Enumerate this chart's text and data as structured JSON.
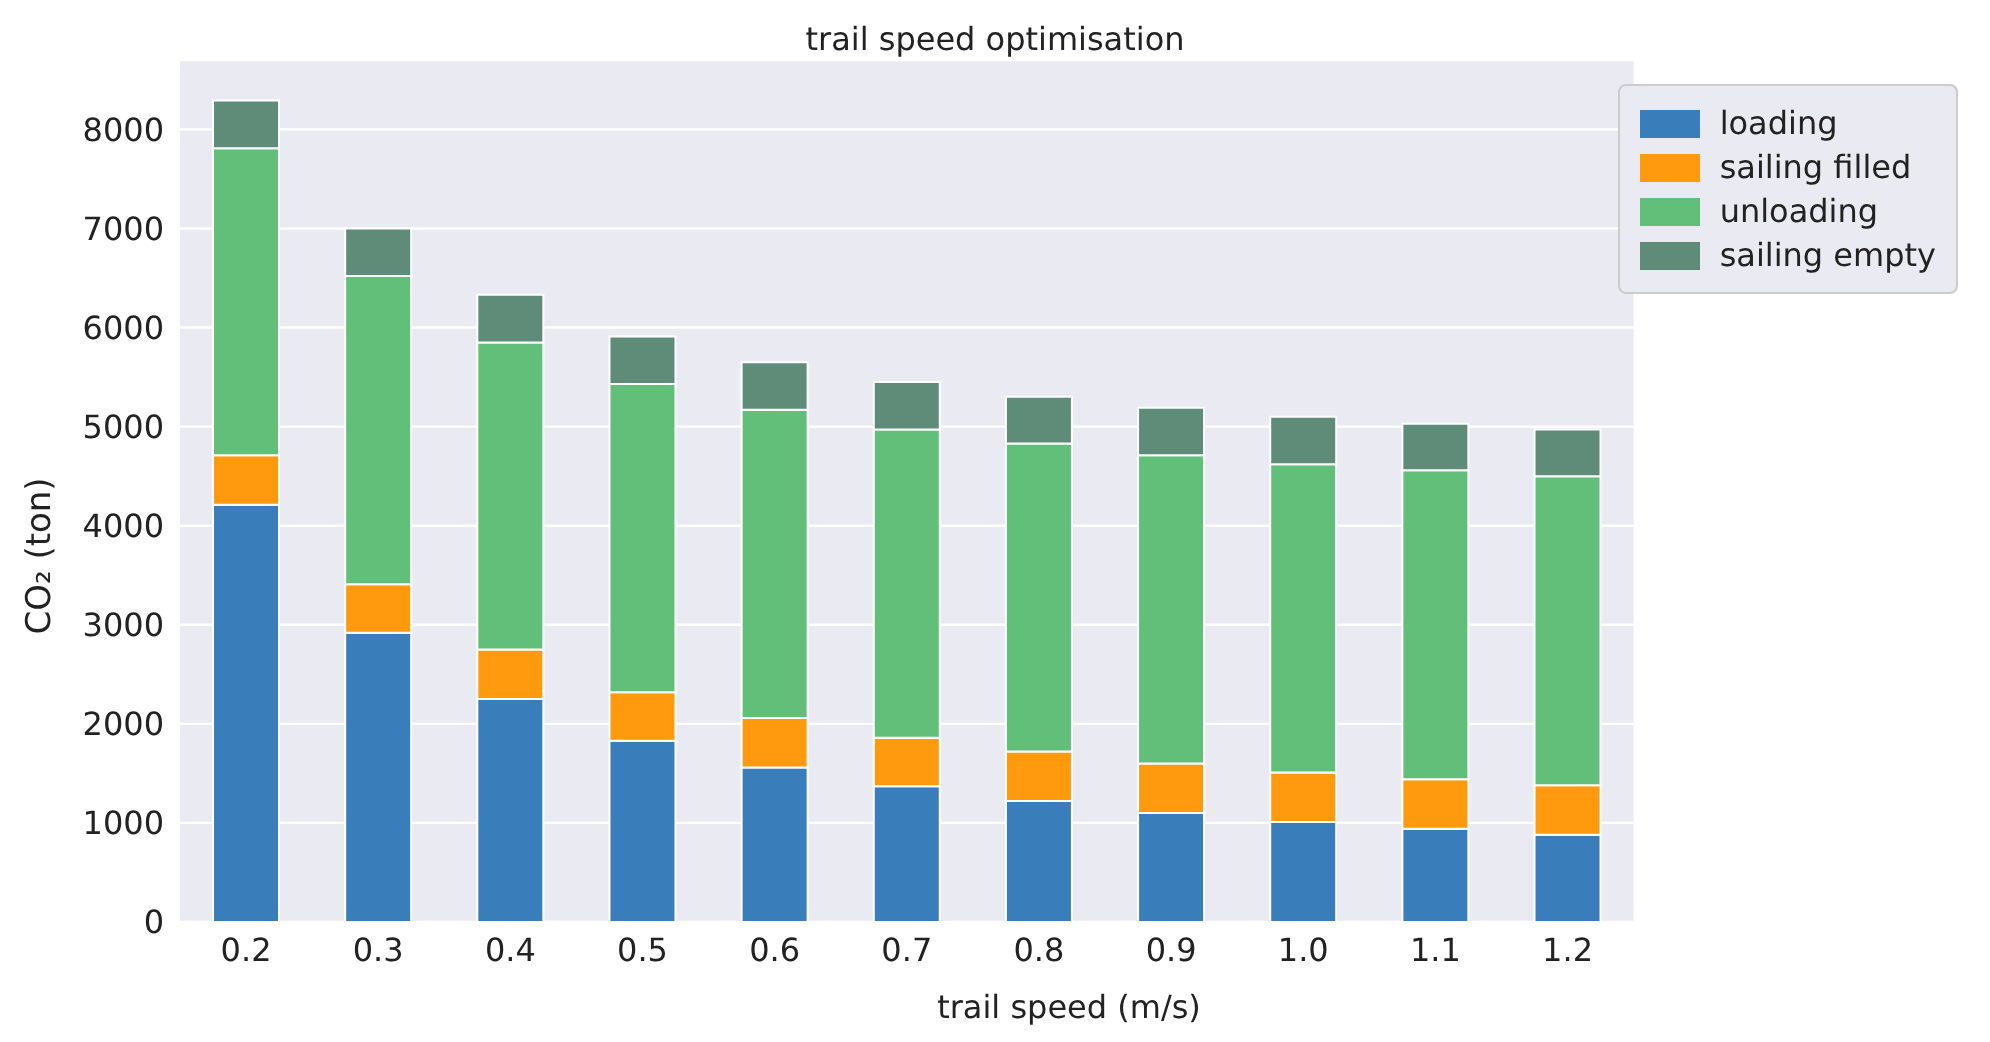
{
  "chart_data": {
    "type": "bar",
    "title": "trail speed optimisation",
    "xlabel": "trail speed (m/s)",
    "ylabel": "CO₂ (ton)",
    "categories": [
      "0.2",
      "0.3",
      "0.4",
      "0.5",
      "0.6",
      "0.7",
      "0.8",
      "0.9",
      "1.0",
      "1.1",
      "1.2"
    ],
    "series": [
      {
        "name": "loading",
        "color": "#3a7dbb",
        "values": [
          4210,
          2920,
          2250,
          1830,
          1560,
          1370,
          1220,
          1100,
          1010,
          940,
          880
        ]
      },
      {
        "name": "sailing filled",
        "color": "#ff9a0e",
        "values": [
          500,
          490,
          500,
          490,
          500,
          490,
          500,
          500,
          500,
          500,
          500
        ]
      },
      {
        "name": "unloading",
        "color": "#62bf79",
        "values": [
          3100,
          3110,
          3100,
          3110,
          3110,
          3110,
          3110,
          3110,
          3110,
          3120,
          3120
        ]
      },
      {
        "name": "sailing empty",
        "color": "#5f8c78",
        "values": [
          480,
          480,
          480,
          480,
          480,
          480,
          470,
          480,
          480,
          470,
          470
        ]
      }
    ],
    "stacked": true,
    "ylim": [
      0,
      8700
    ],
    "yticks": [
      0,
      1000,
      2000,
      3000,
      4000,
      5000,
      6000,
      7000,
      8000
    ],
    "grid": "y",
    "legend": "top right"
  }
}
